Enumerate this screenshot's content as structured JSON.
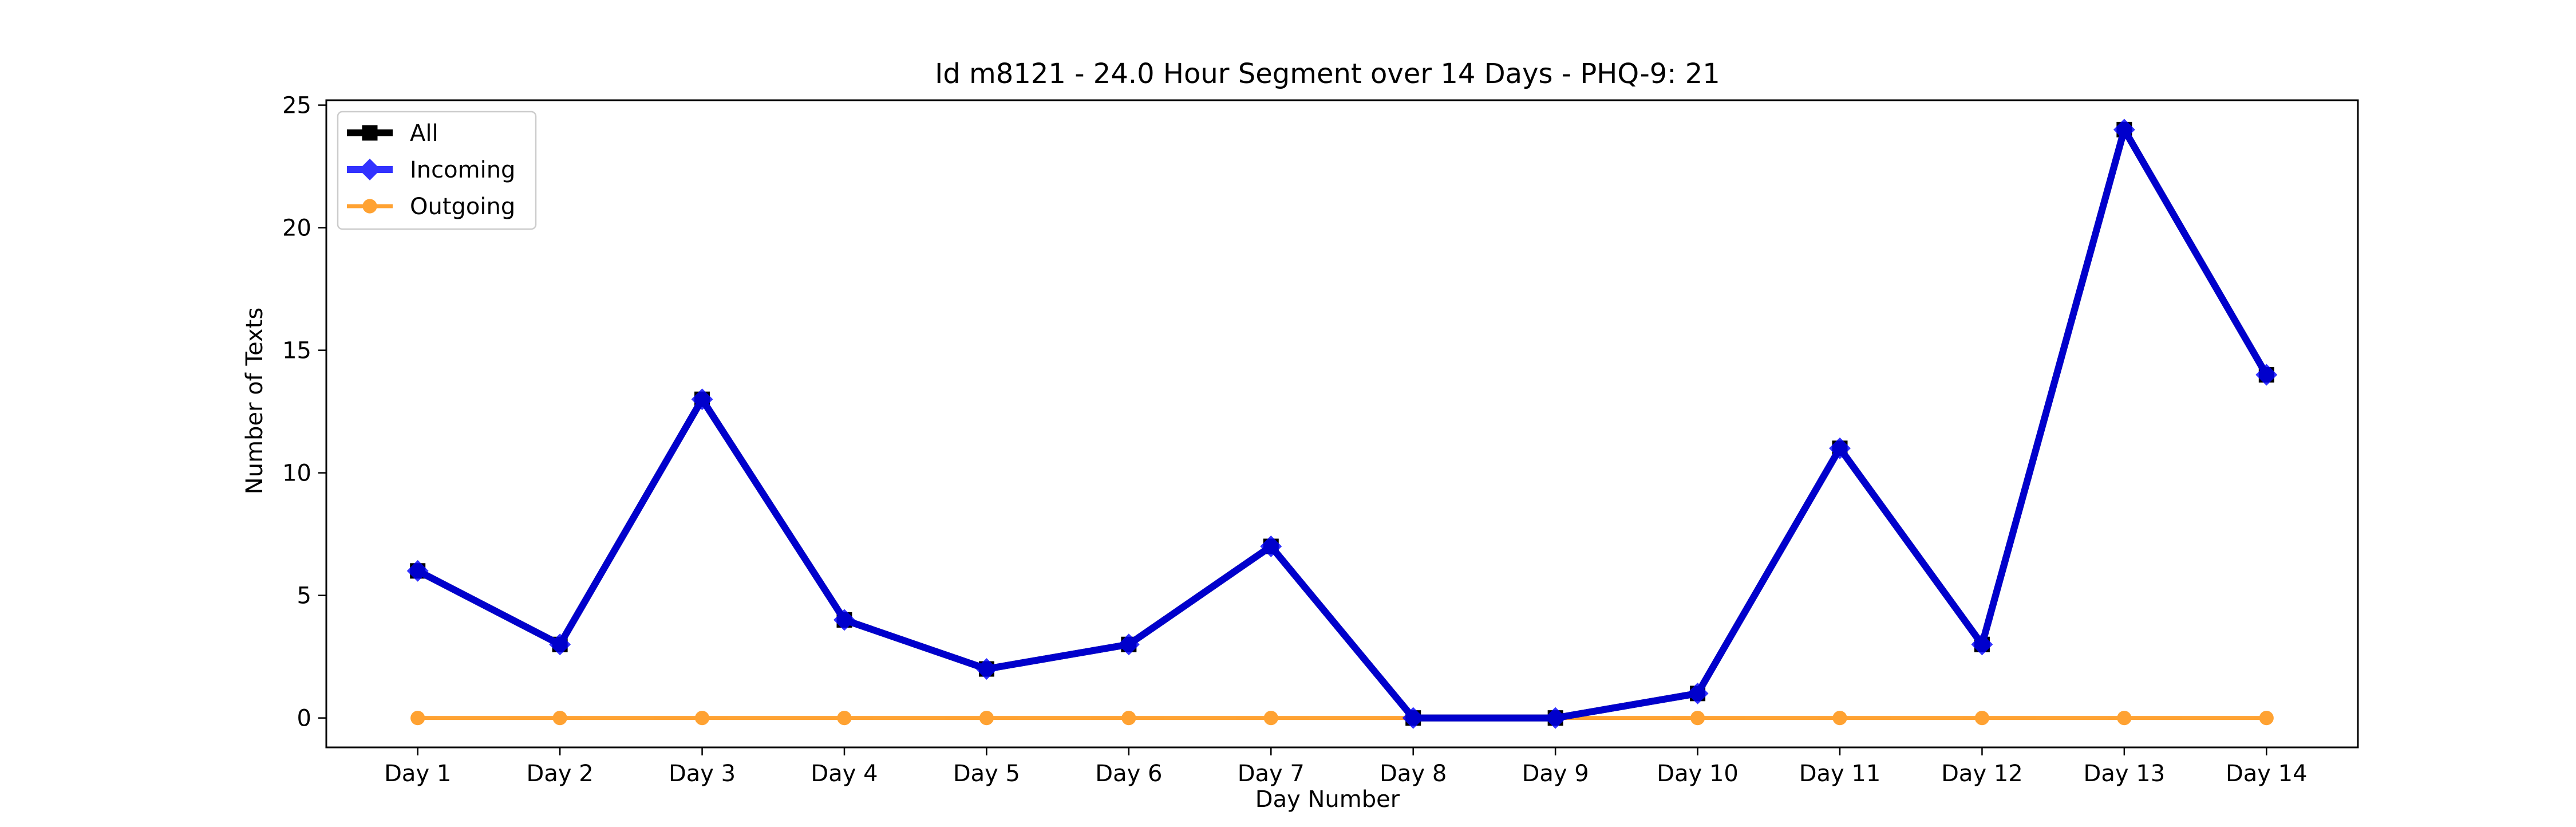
{
  "chart_data": {
    "type": "line",
    "title": "Id m8121 - 24.0 Hour Segment over 14 Days - PHQ-9: 21",
    "xlabel": "Day Number",
    "ylabel": "Number of Texts",
    "categories": [
      "Day 1",
      "Day 2",
      "Day 3",
      "Day 4",
      "Day 5",
      "Day 6",
      "Day 7",
      "Day 8",
      "Day 9",
      "Day 10",
      "Day 11",
      "Day 12",
      "Day 13",
      "Day 14"
    ],
    "ylim": [
      -1.2,
      25.2
    ],
    "yticks": [
      0,
      5,
      10,
      15,
      20,
      25
    ],
    "grid": false,
    "legend_position": "upper-left",
    "series": [
      {
        "name": "All",
        "color": "#000000",
        "marker": "square",
        "values": [
          6,
          3,
          13,
          4,
          2,
          3,
          7,
          0,
          0,
          1,
          11,
          3,
          24,
          14
        ]
      },
      {
        "name": "Incoming",
        "color": "#0000ff",
        "marker": "diamond",
        "values": [
          6,
          3,
          13,
          4,
          2,
          3,
          7,
          0,
          0,
          1,
          11,
          3,
          24,
          14
        ]
      },
      {
        "name": "Outgoing",
        "color": "#ff8c00",
        "marker": "circle",
        "values": [
          0,
          0,
          0,
          0,
          0,
          0,
          0,
          0,
          0,
          0,
          0,
          0,
          0,
          0
        ]
      }
    ]
  }
}
